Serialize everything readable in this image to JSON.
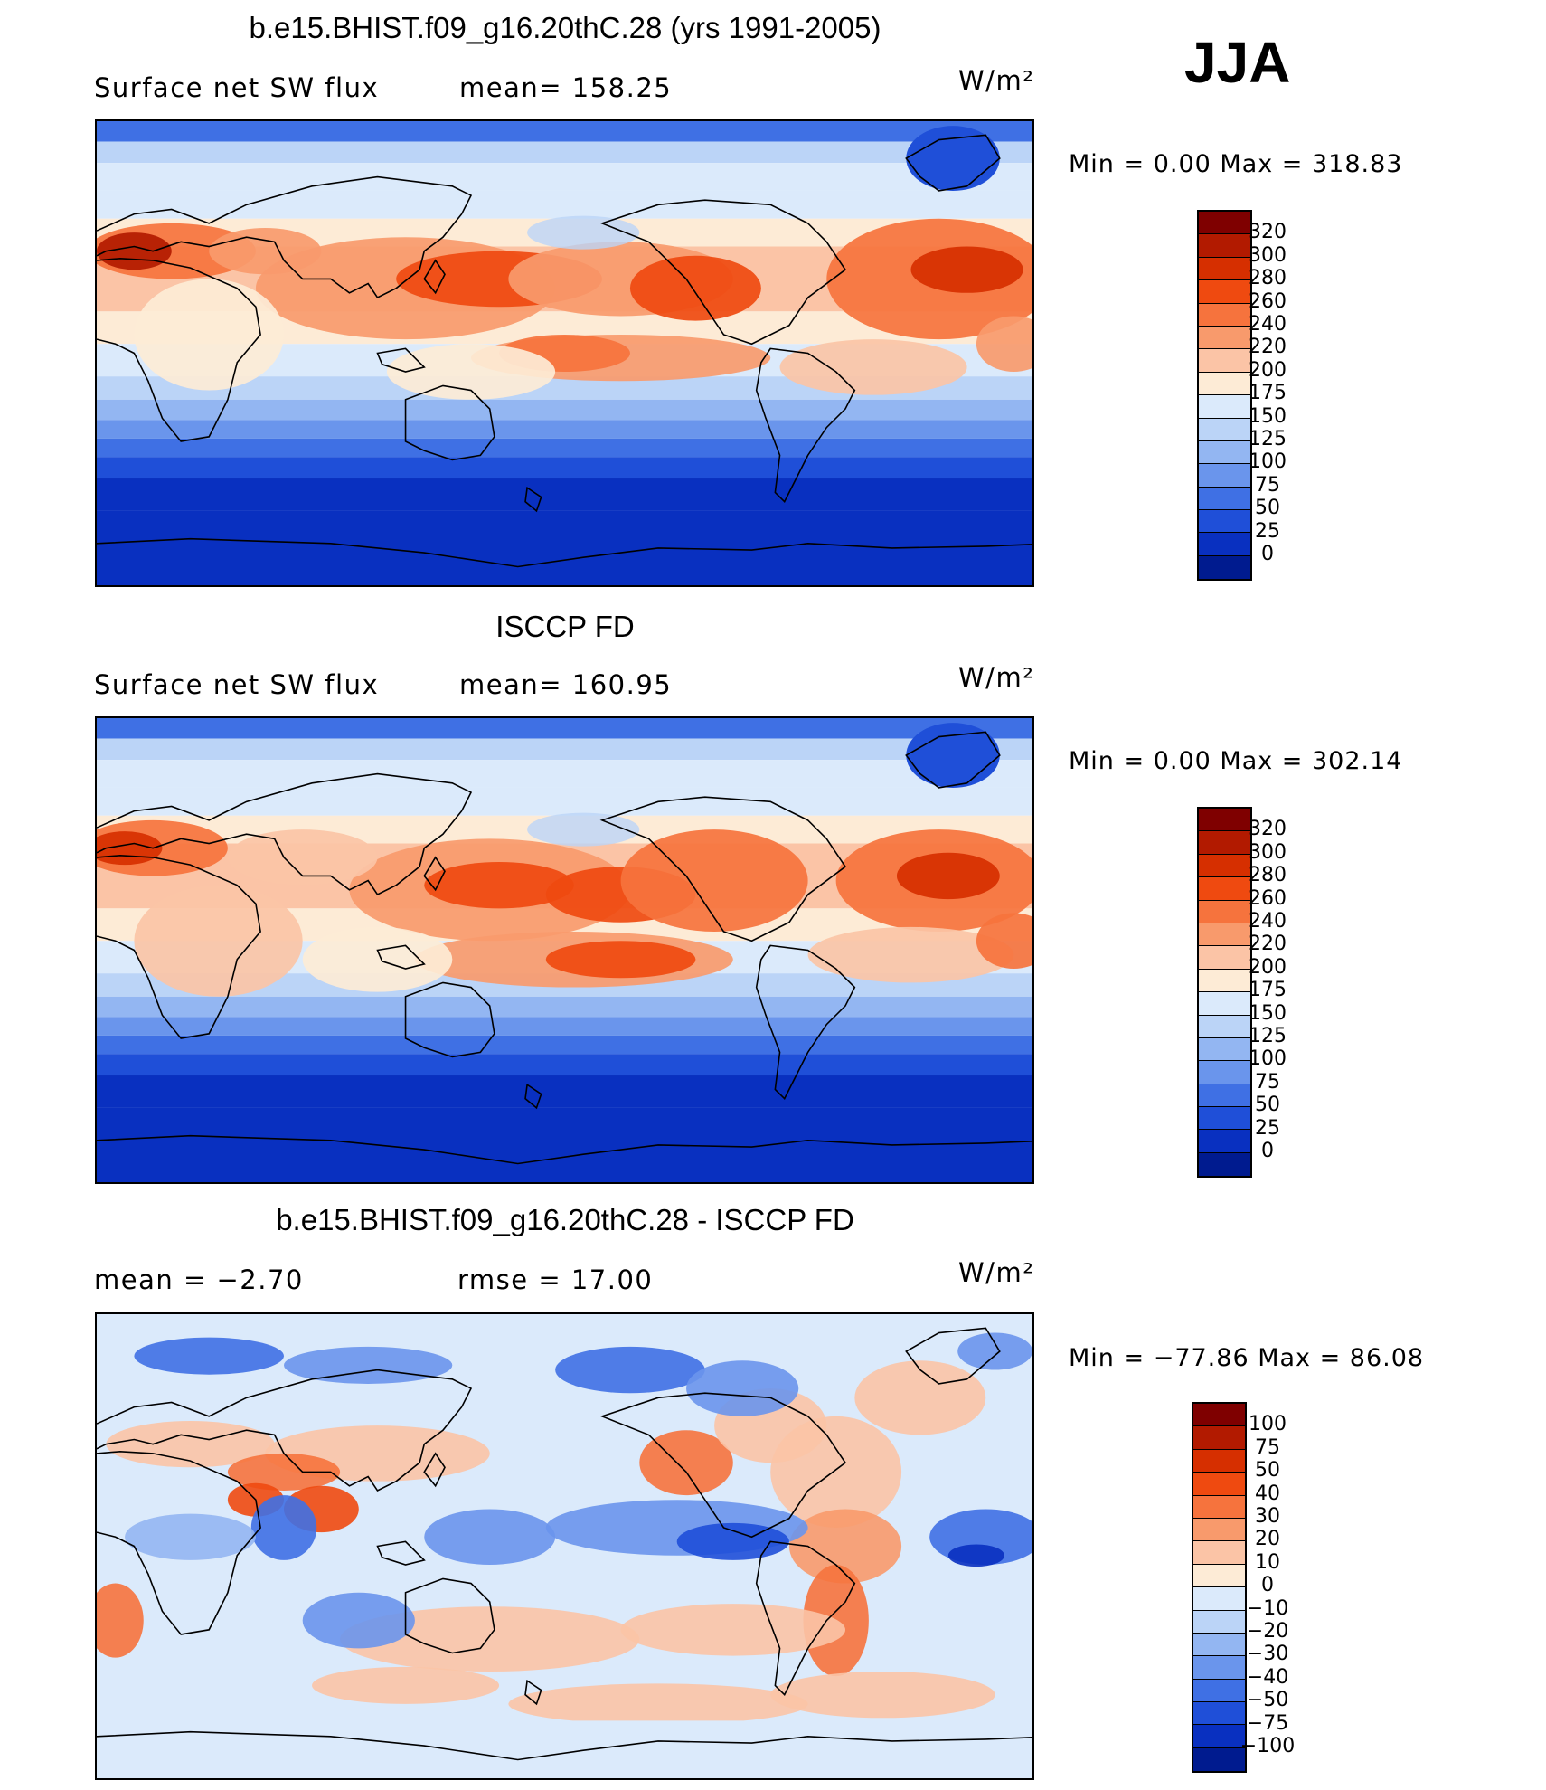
{
  "season": "JJA",
  "panels": [
    {
      "title": "b.e15.BHIST.f09_g16.20thC.28 (yrs 1991-2005)",
      "left": "Surface net SW flux",
      "middle": "mean= 158.25",
      "units": "W/m²",
      "minmax": "Min =    0.00 Max = 318.83",
      "field": "model"
    },
    {
      "title": "ISCCP FD",
      "left": "Surface net SW flux",
      "middle": "mean= 160.95",
      "units": "W/m²",
      "minmax": "Min =    0.00 Max = 302.14",
      "field": "obs"
    },
    {
      "title": "b.e15.BHIST.f09_g16.20thC.28 - ISCCP FD",
      "left": "mean =   −2.70",
      "middle": "rmse =    17.00",
      "units": "W/m²",
      "minmax": "Min = −77.86 Max =   86.08",
      "field": "diff"
    }
  ],
  "colorbars": {
    "abs": {
      "labels": [
        "320",
        "300",
        "280",
        "260",
        "240",
        "220",
        "200",
        "175",
        "150",
        "125",
        "100",
        "75",
        "50",
        "25",
        "0"
      ],
      "colors": [
        "#7f0000",
        "#b21a00",
        "#d62f00",
        "#ef4a10",
        "#f6733d",
        "#f89a6c",
        "#fbc4a6",
        "#fdebd6",
        "#dbeafb",
        "#bbd4f7",
        "#93b6f2",
        "#6a95ec",
        "#3f70e4",
        "#1f4fd8",
        "#0930c0",
        "#001b8f"
      ]
    },
    "diff": {
      "labels": [
        "100",
        "75",
        "50",
        "40",
        "30",
        "20",
        "10",
        "0",
        "−10",
        "−20",
        "−30",
        "−40",
        "−50",
        "−75",
        "−100"
      ],
      "colors": [
        "#7f0000",
        "#b21a00",
        "#d62f00",
        "#ef4a10",
        "#f6733d",
        "#f89a6c",
        "#fbc4a6",
        "#fdebd6",
        "#dbeafb",
        "#bbd4f7",
        "#93b6f2",
        "#6a95ec",
        "#3f70e4",
        "#1f4fd8",
        "#0930c0",
        "#001b8f"
      ]
    }
  }
}
